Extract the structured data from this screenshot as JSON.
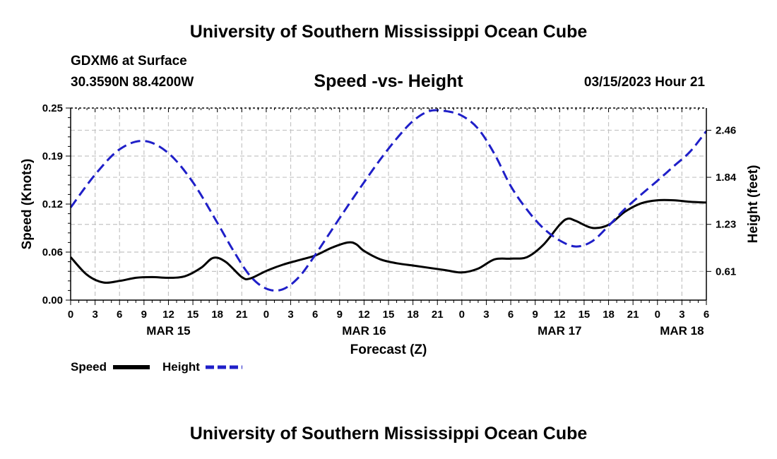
{
  "header": {
    "title": "University of Southern Mississippi Ocean Cube",
    "station": "GDXM6 at Surface",
    "coords": "30.3590N  88.4200W",
    "subtitle": "Speed -vs- Height",
    "datetime": "03/15/2023 Hour 21"
  },
  "footer": {
    "title": "University of Southern Mississippi Ocean Cube"
  },
  "chart_data": {
    "type": "line",
    "title": "Speed -vs- Height",
    "xlabel": "Forecast (Z)",
    "ylabel": "Speed (Knots)",
    "y2label": "Height (feet)",
    "x_ticks": [
      "0",
      "3",
      "6",
      "9",
      "12",
      "15",
      "18",
      "21",
      "0",
      "3",
      "6",
      "9",
      "12",
      "15",
      "18",
      "21",
      "0",
      "3",
      "6",
      "9",
      "12",
      "15",
      "18",
      "21",
      "0",
      "3",
      "6"
    ],
    "x_hours": [
      0,
      3,
      6,
      9,
      12,
      15,
      18,
      21,
      24,
      27,
      30,
      33,
      36,
      39,
      42,
      45,
      48,
      51,
      54,
      57,
      60,
      63,
      66,
      69,
      72,
      75,
      78
    ],
    "dates": [
      {
        "label": "MAR 15",
        "hour": 12
      },
      {
        "label": "MAR 16",
        "hour": 36
      },
      {
        "label": "MAR 17",
        "hour": 60
      },
      {
        "label": "MAR 18",
        "hour": 75
      }
    ],
    "xlim": [
      0,
      78
    ],
    "ylim": [
      0,
      0.25
    ],
    "y_ticks": [
      "0.00",
      "0.06",
      "0.12",
      "0.19",
      "0.25"
    ],
    "y_tick_values": [
      0,
      0.0625,
      0.125,
      0.1875,
      0.25
    ],
    "y2lim": [
      0.24,
      2.75
    ],
    "y2_ticks": [
      "0.61",
      "1.23",
      "1.84",
      "2.46"
    ],
    "y2_tick_values": [
      0.615,
      1.23,
      1.845,
      2.46
    ],
    "grid": true,
    "legend_position": "bottom-left",
    "series": [
      {
        "name": "Speed",
        "axis": "left",
        "color": "#000000",
        "style": "solid",
        "x": [
          0,
          2,
          4,
          6,
          8,
          10,
          12,
          14,
          16,
          17.5,
          19,
          21,
          22,
          24,
          26,
          28,
          30,
          32,
          34,
          35,
          36,
          38,
          40,
          42,
          44,
          46,
          48,
          50,
          52,
          54,
          56,
          58,
          60,
          61,
          62,
          64,
          66,
          68,
          70,
          72,
          74,
          76,
          78
        ],
        "y": [
          0.056,
          0.033,
          0.023,
          0.025,
          0.029,
          0.03,
          0.029,
          0.031,
          0.042,
          0.055,
          0.05,
          0.03,
          0.028,
          0.038,
          0.046,
          0.052,
          0.058,
          0.068,
          0.075,
          0.073,
          0.064,
          0.053,
          0.048,
          0.045,
          0.042,
          0.039,
          0.036,
          0.041,
          0.053,
          0.054,
          0.056,
          0.072,
          0.098,
          0.106,
          0.103,
          0.094,
          0.098,
          0.115,
          0.126,
          0.13,
          0.13,
          0.128,
          0.127
        ]
      },
      {
        "name": "Height",
        "axis": "right",
        "color": "#1f1fc8",
        "style": "dashed",
        "x": [
          0,
          3,
          6,
          9,
          12,
          15,
          18,
          20,
          22,
          24,
          26,
          28,
          30,
          32,
          34,
          36,
          38,
          40,
          42,
          44,
          46,
          48,
          50,
          52,
          54,
          56,
          58,
          60,
          62,
          64,
          66,
          68,
          70,
          72,
          74,
          76,
          78
        ],
        "y": [
          1.45,
          1.88,
          2.21,
          2.32,
          2.16,
          1.78,
          1.25,
          0.88,
          0.56,
          0.39,
          0.38,
          0.54,
          0.83,
          1.15,
          1.47,
          1.78,
          2.08,
          2.35,
          2.58,
          2.71,
          2.71,
          2.65,
          2.48,
          2.15,
          1.73,
          1.42,
          1.18,
          1.02,
          0.94,
          1.01,
          1.21,
          1.43,
          1.62,
          1.8,
          1.99,
          2.18,
          2.45
        ]
      }
    ]
  }
}
